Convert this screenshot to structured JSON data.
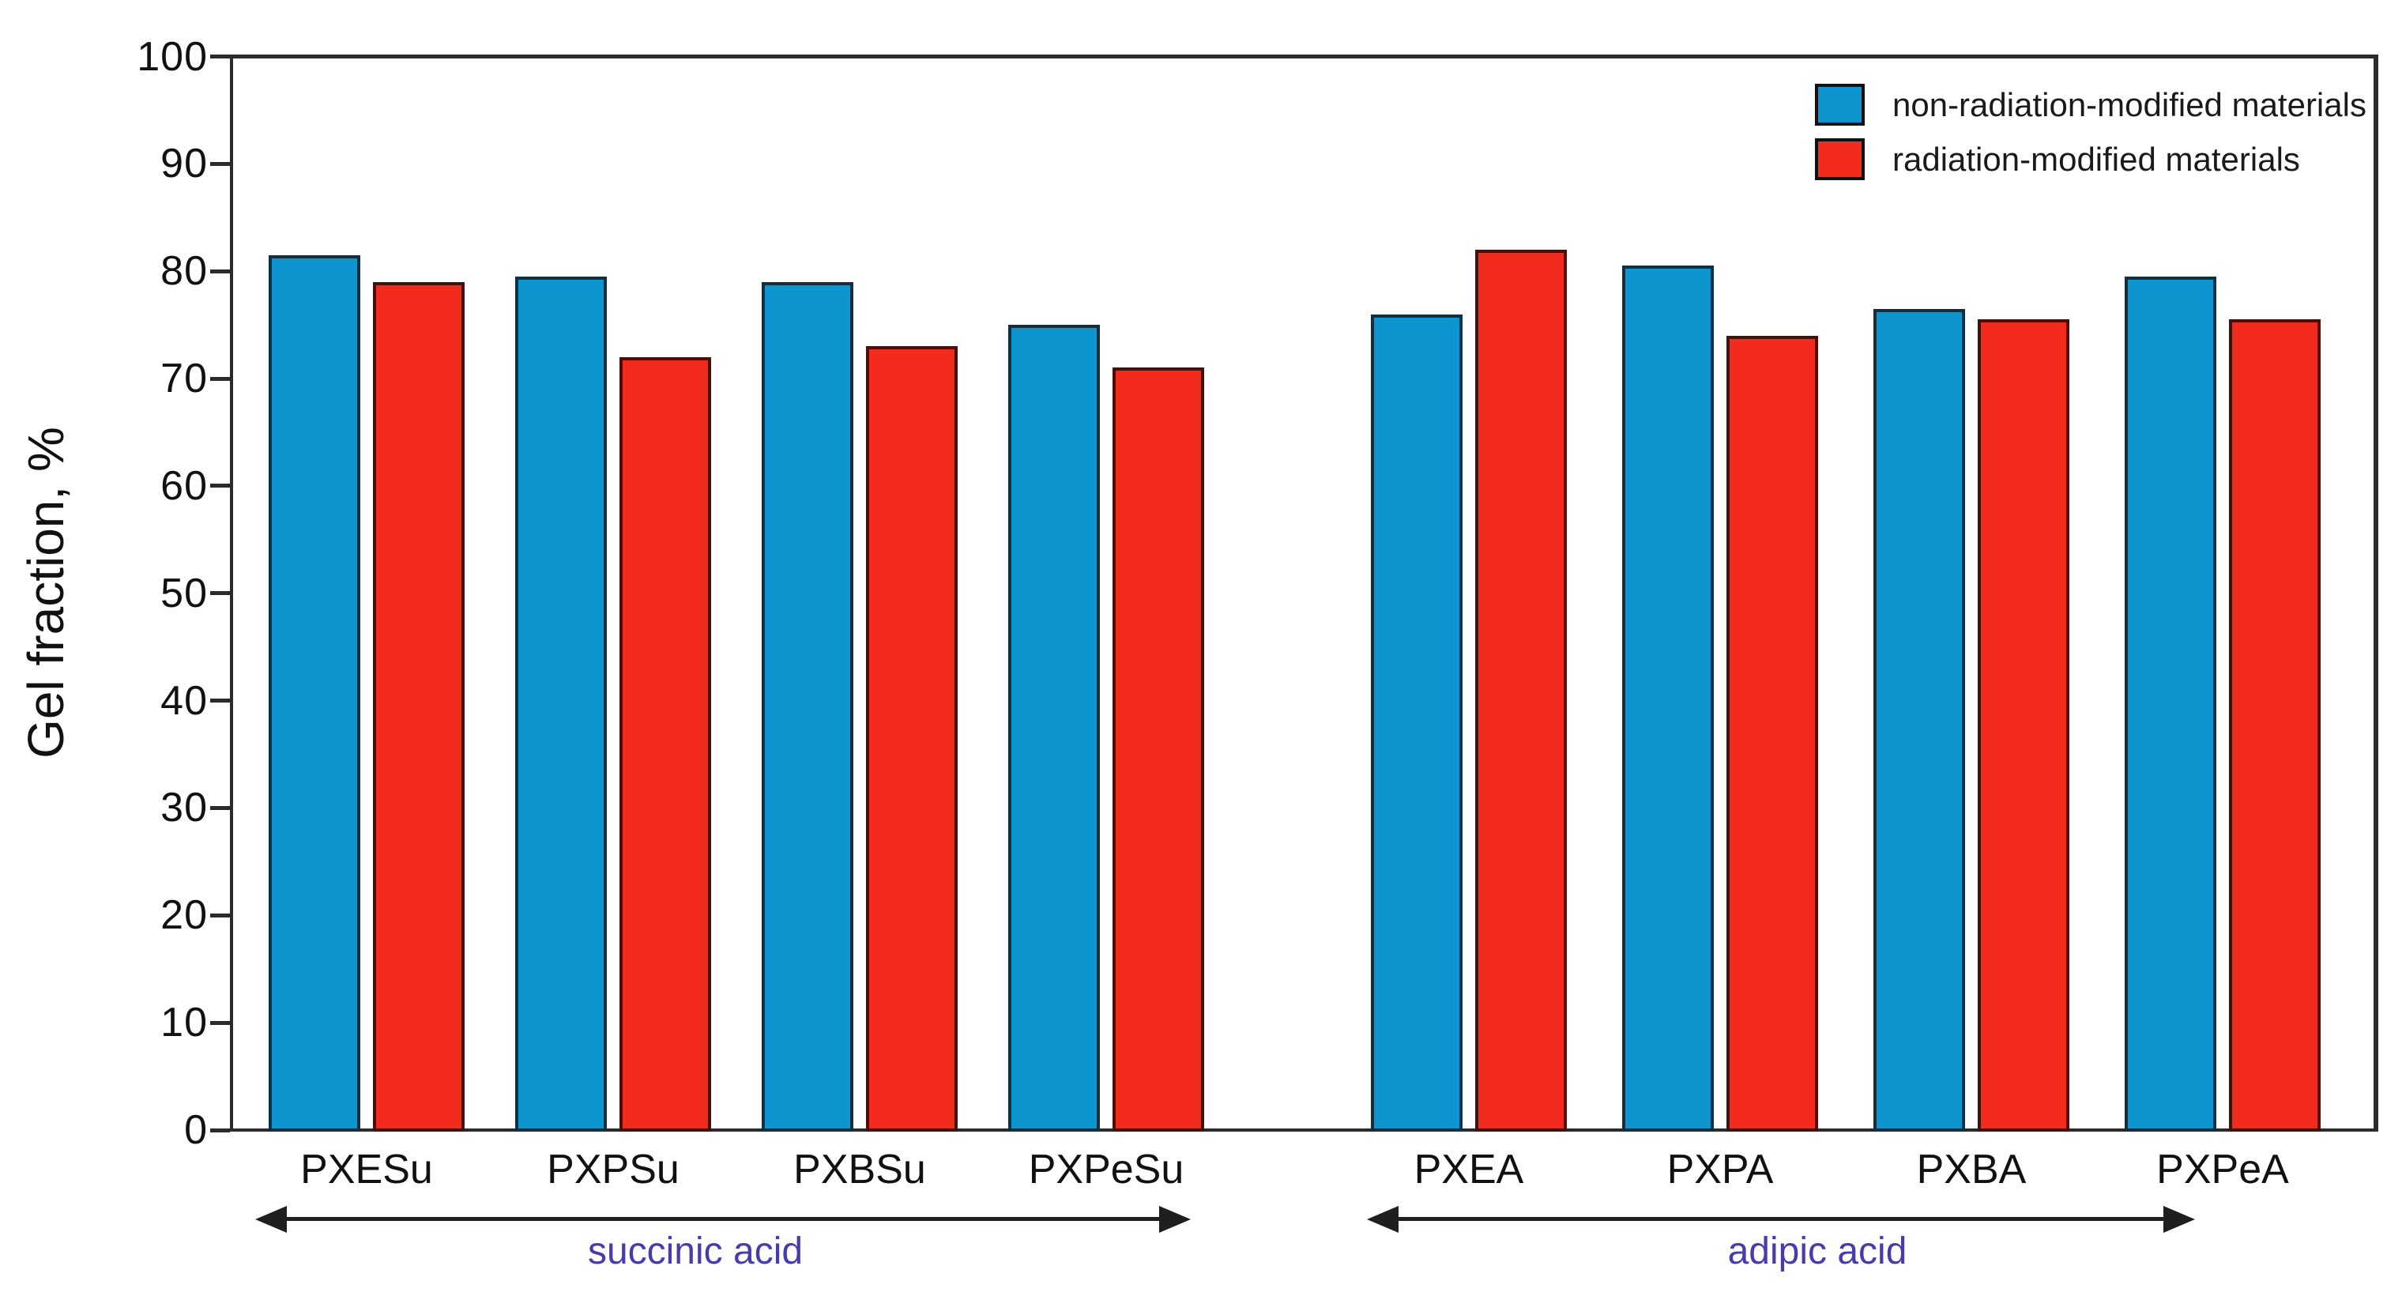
{
  "chart_data": {
    "type": "bar",
    "title": "",
    "xlabel": "",
    "ylabel": "Gel fraction, %",
    "ylim": [
      0,
      100
    ],
    "yticks": [
      0,
      10,
      20,
      30,
      40,
      50,
      60,
      70,
      80,
      90,
      100
    ],
    "grid": false,
    "legend_position": "top-right",
    "categories": [
      "PXESu",
      "PXPSu",
      "PXBSu",
      "PXPeSu",
      "PXEA",
      "PXPA",
      "PXBA",
      "PXPeA"
    ],
    "series": [
      {
        "name": "non-radiation-modified materials",
        "color": "#0d95d0",
        "border_color": "#0d3142",
        "values": [
          81.5,
          79.5,
          79,
          75,
          76,
          80.5,
          76.5,
          79.5
        ]
      },
      {
        "name": "radiation-modified materials",
        "color": "#f32b1c",
        "border_color": "#47100b",
        "values": [
          79,
          72,
          73,
          71,
          82,
          74,
          75.5,
          75.5
        ]
      }
    ],
    "groups": [
      {
        "label": "succinic acid",
        "first_category": "PXESu",
        "last_category": "PXPeSu"
      },
      {
        "label": "adipic acid",
        "first_category": "PXEA",
        "last_category": "PXPeA"
      }
    ],
    "colors": {
      "axis": "#2b2b2b",
      "text": "#111111",
      "group_label": "#473cab",
      "arrow": "#1f1f1f",
      "background": "#ffffff"
    }
  },
  "legend": {
    "items": [
      {
        "label": "non-radiation-modified materials",
        "color": "#0d95d0"
      },
      {
        "label": "radiation-modified materials",
        "color": "#f32b1c"
      }
    ]
  }
}
